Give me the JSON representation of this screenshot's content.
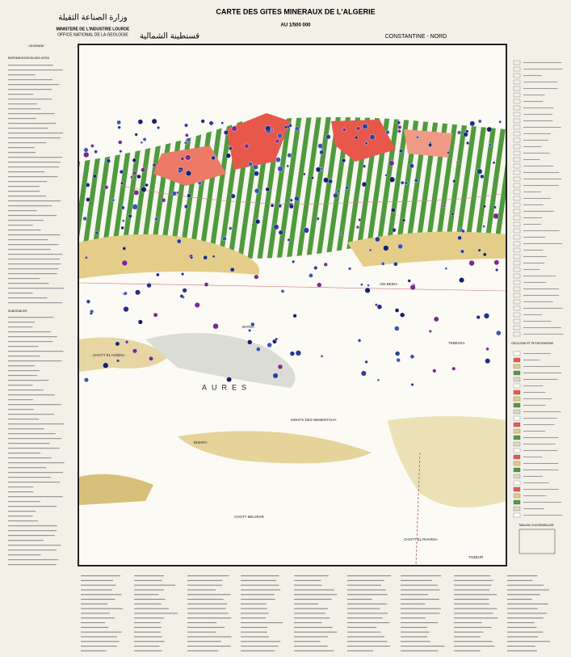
{
  "header": {
    "ministry_arabic": "وزارة الصناعة الثقيلة",
    "ministry": "MINISTERE DE L'INDUSTRIE LOURDE",
    "office": "OFFICE NATIONAL DE LA GEOLOGIE",
    "title": "CARTE DES GITES MINERAUX DE L'ALGERIE",
    "scale": "AU 1/500 000",
    "region_arabic": "قسنطينة الشمالية",
    "sheet": "CONSTANTINE - NORD"
  },
  "legend": {
    "title": "LEGENDE",
    "sections": [
      "REPRESENTATION DES GITES",
      "SUBSTANCES",
      "GEOLOGIE ET PETROGRAPHIE"
    ]
  },
  "map": {
    "labels": [
      "AIN BEIDA",
      "BATNA",
      "CHOTT EL HODNA",
      "AURES",
      "MONTS DES NEMENTCHA",
      "BISKRA",
      "TEBESSA",
      "CHOTT MELRHIR",
      "CHOTT EL RHARSA",
      "TOZEUR"
    ]
  },
  "assembly": {
    "title": "TABLEAU D'ASSEMBLAGE"
  }
}
